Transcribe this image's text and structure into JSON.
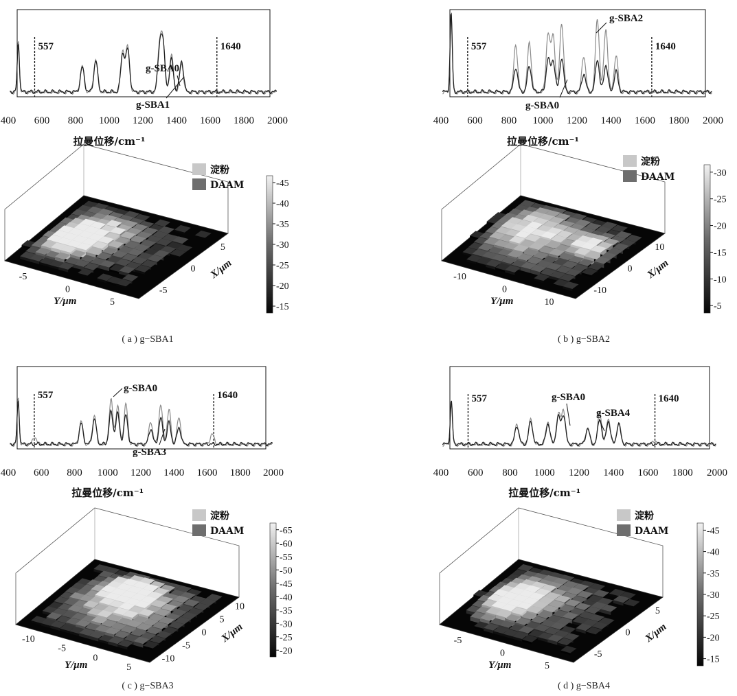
{
  "chart_data": [
    {
      "id": "a",
      "type": "line",
      "xlabel": "拉曼位移/cm⁻¹",
      "xlim": [
        400,
        2000
      ],
      "xticks": [
        400,
        600,
        800,
        1000,
        1200,
        1400,
        1600,
        1800,
        2000
      ],
      "vlines": [
        {
          "x": 557,
          "label": "557"
        },
        {
          "x": 1640,
          "label": "1640"
        }
      ],
      "annotations": [
        "g-SBA0",
        "g-SBA1"
      ],
      "series": [
        {
          "name": "g-SBA0",
          "color": "#8a8a8a",
          "peaks": [
            [
              460,
              0.62
            ],
            [
              840,
              0.32
            ],
            [
              920,
              0.4
            ],
            [
              1080,
              0.5
            ],
            [
              1110,
              0.55
            ],
            [
              1300,
              0.55
            ],
            [
              1320,
              0.57
            ],
            [
              1370,
              0.45
            ],
            [
              1430,
              0.35
            ]
          ]
        },
        {
          "name": "g-SBA1",
          "color": "#202020",
          "peaks": [
            [
              460,
              0.6
            ],
            [
              840,
              0.3
            ],
            [
              920,
              0.38
            ],
            [
              1080,
              0.47
            ],
            [
              1110,
              0.52
            ],
            [
              1300,
              0.52
            ],
            [
              1320,
              0.54
            ],
            [
              1370,
              0.4
            ],
            [
              1430,
              0.38
            ]
          ]
        }
      ],
      "map": {
        "legend": [
          {
            "label": "淀粉",
            "color": "#c8c8c8"
          },
          {
            "label": "DAAM",
            "color": "#6e6e6e"
          }
        ],
        "colorbar_ticks": [
          45,
          40,
          35,
          30,
          25,
          20,
          15
        ],
        "colorbar_labels": [
          "-45",
          "-40",
          "-35",
          "-30",
          "-25",
          "-20",
          "-15"
        ],
        "y_ticks": [
          "-5",
          "0",
          "5"
        ],
        "x_ticks": [
          "5",
          "0",
          "-5"
        ],
        "y_axis_label": "Y/μm",
        "x_axis_label": "X/μm"
      },
      "caption": "( a ) g−SBA1"
    },
    {
      "id": "b",
      "type": "line",
      "xlabel": "拉曼位移/cm⁻¹",
      "xlim": [
        400,
        2000
      ],
      "xticks": [
        400,
        600,
        800,
        1000,
        1200,
        1400,
        1600,
        1800,
        2000
      ],
      "vlines": [
        {
          "x": 557,
          "label": "557"
        },
        {
          "x": 1640,
          "label": "1640"
        }
      ],
      "annotations": [
        "g-SBA2",
        "g-SBA0"
      ],
      "series": [
        {
          "name": "g-SBA2",
          "color": "#8a8a8a",
          "peaks": [
            [
              460,
              0.95
            ],
            [
              840,
              0.58
            ],
            [
              920,
              0.6
            ],
            [
              1030,
              0.72
            ],
            [
              1060,
              0.7
            ],
            [
              1110,
              0.85
            ],
            [
              1240,
              0.45
            ],
            [
              1320,
              0.9
            ],
            [
              1370,
              0.78
            ],
            [
              1430,
              0.45
            ]
          ]
        },
        {
          "name": "g-SBA0",
          "color": "#202020",
          "peaks": [
            [
              460,
              0.98
            ],
            [
              840,
              0.3
            ],
            [
              920,
              0.32
            ],
            [
              1030,
              0.4
            ],
            [
              1060,
              0.38
            ],
            [
              1110,
              0.42
            ],
            [
              1240,
              0.22
            ],
            [
              1320,
              0.4
            ],
            [
              1370,
              0.33
            ],
            [
              1430,
              0.25
            ]
          ]
        }
      ],
      "map": {
        "legend": [
          {
            "label": "淀粉",
            "color": "#c8c8c8"
          },
          {
            "label": "DAAM",
            "color": "#6e6e6e"
          }
        ],
        "colorbar_ticks": [
          30,
          25,
          20,
          15,
          10,
          5
        ],
        "colorbar_labels": [
          "-30",
          "-25",
          "-20",
          "-15",
          "-10",
          "-5"
        ],
        "y_ticks": [
          "-10",
          "0",
          "10"
        ],
        "x_ticks": [
          "10",
          "0",
          "-10"
        ],
        "y_axis_label": "Y/μm",
        "x_axis_label": "X/μm"
      },
      "caption": "( b ) g−SBA2"
    },
    {
      "id": "c",
      "type": "line",
      "xlabel": "拉曼位移/cm⁻¹",
      "xlim": [
        400,
        2000
      ],
      "xticks": [
        400,
        600,
        800,
        1000,
        1200,
        1400,
        1600,
        1800,
        2000
      ],
      "vlines": [
        {
          "x": 557,
          "label": "557"
        },
        {
          "x": 1640,
          "label": "1640"
        }
      ],
      "annotations": [
        "g-SBA0",
        "g-SBA3"
      ],
      "series": [
        {
          "name": "g-SBA0",
          "color": "#8a8a8a",
          "peaks": [
            [
              460,
              0.6
            ],
            [
              560,
              0.1
            ],
            [
              840,
              0.3
            ],
            [
              920,
              0.38
            ],
            [
              1020,
              0.58
            ],
            [
              1060,
              0.5
            ],
            [
              1110,
              0.52
            ],
            [
              1260,
              0.3
            ],
            [
              1320,
              0.52
            ],
            [
              1370,
              0.45
            ],
            [
              1430,
              0.35
            ],
            [
              1630,
              0.14
            ]
          ]
        },
        {
          "name": "g-SBA3",
          "color": "#202020",
          "peaks": [
            [
              460,
              0.57
            ],
            [
              840,
              0.27
            ],
            [
              920,
              0.33
            ],
            [
              1020,
              0.42
            ],
            [
              1060,
              0.4
            ],
            [
              1110,
              0.38
            ],
            [
              1260,
              0.2
            ],
            [
              1320,
              0.34
            ],
            [
              1370,
              0.28
            ],
            [
              1430,
              0.22
            ]
          ]
        }
      ],
      "map": {
        "legend": [
          {
            "label": "淀粉",
            "color": "#c8c8c8"
          },
          {
            "label": "DAAM",
            "color": "#6e6e6e"
          }
        ],
        "colorbar_ticks": [
          65,
          60,
          55,
          50,
          45,
          40,
          35,
          30,
          25,
          20
        ],
        "colorbar_labels": [
          "-65",
          "-60",
          "-55",
          "-50",
          "-45",
          "-40",
          "-35",
          "-30",
          "-25",
          "-20"
        ],
        "y_ticks": [
          "-10",
          "-5",
          "0",
          "5"
        ],
        "x_ticks": [
          "10",
          "5",
          "0",
          "-5",
          "-10"
        ],
        "y_axis_label": "Y/μm",
        "x_axis_label": "X/μm"
      },
      "caption": "( c ) g−SBA3"
    },
    {
      "id": "d",
      "type": "line",
      "xlabel": "拉曼位移/cm⁻¹",
      "xlim": [
        400,
        2000
      ],
      "xticks": [
        400,
        600,
        800,
        1000,
        1200,
        1400,
        1600,
        1800,
        2000
      ],
      "vlines": [
        {
          "x": 557,
          "label": "557"
        },
        {
          "x": 1640,
          "label": "1640"
        }
      ],
      "annotations": [
        "g-SBA0",
        "g-SBA4"
      ],
      "series": [
        {
          "name": "g-SBA0",
          "color": "#8a8a8a",
          "peaks": [
            [
              460,
              0.55
            ],
            [
              840,
              0.26
            ],
            [
              920,
              0.32
            ],
            [
              1020,
              0.3
            ],
            [
              1080,
              0.4
            ],
            [
              1110,
              0.45
            ],
            [
              1250,
              0.22
            ],
            [
              1320,
              0.42
            ],
            [
              1370,
              0.34
            ],
            [
              1430,
              0.28
            ],
            [
              1640,
              0.05
            ]
          ]
        },
        {
          "name": "g-SBA4",
          "color": "#202020",
          "peaks": [
            [
              460,
              0.56
            ],
            [
              840,
              0.24
            ],
            [
              920,
              0.3
            ],
            [
              1020,
              0.27
            ],
            [
              1080,
              0.35
            ],
            [
              1110,
              0.38
            ],
            [
              1250,
              0.2
            ],
            [
              1320,
              0.33
            ],
            [
              1370,
              0.3
            ],
            [
              1430,
              0.26
            ]
          ]
        }
      ],
      "map": {
        "legend": [
          {
            "label": "淀粉",
            "color": "#c8c8c8"
          },
          {
            "label": "DAAM",
            "color": "#6e6e6e"
          }
        ],
        "colorbar_ticks": [
          45,
          40,
          35,
          30,
          25,
          20,
          15
        ],
        "colorbar_labels": [
          "-45",
          "-40",
          "-35",
          "-30",
          "-25",
          "-20",
          "-15"
        ],
        "y_ticks": [
          "-5",
          "0",
          "5"
        ],
        "x_ticks": [
          "5",
          "0",
          "-5"
        ],
        "y_axis_label": "Y/μm",
        "x_axis_label": "X/μm"
      },
      "caption": "( d ) g−SBA4"
    }
  ]
}
